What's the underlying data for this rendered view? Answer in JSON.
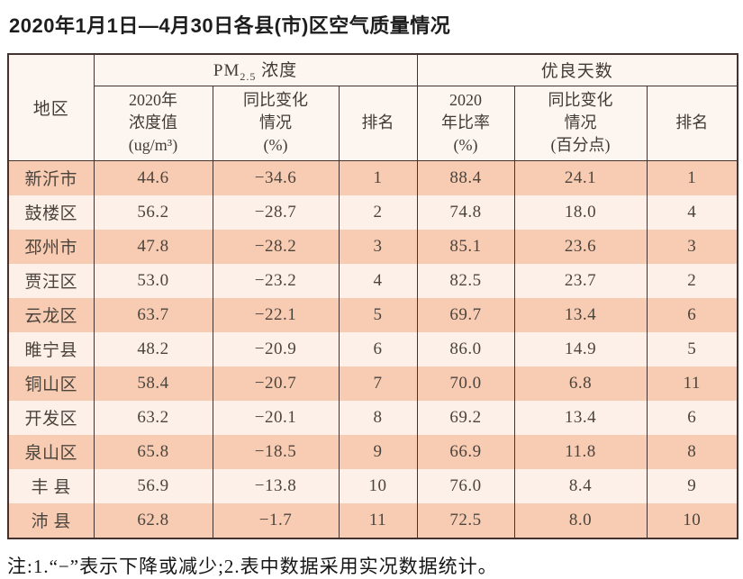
{
  "title": "2020年1月1日—4月30日各县(市)区空气质量情况",
  "colors": {
    "row_shade": "#f8ccb3",
    "row_light": "#fdf0e8",
    "header_bg": "#fdf6f0",
    "border": "#443230"
  },
  "table": {
    "header": {
      "region": "地区",
      "pm25_group": {
        "prefix": "PM",
        "sub": "2.5",
        "suffix": " 浓度"
      },
      "good_days_group": "优良天数",
      "sub_headers": {
        "pm_value": "2020年\n浓度值\n(ug/m³)",
        "pm_change": "同比变化\n情况\n(%)",
        "pm_rank": "排名",
        "days_ratio": "2020\n年比率\n(%)",
        "days_change": "同比变化\n情况\n(百分点)",
        "days_rank": "排名"
      }
    },
    "rows": [
      {
        "region": "新沂市",
        "pm_value": "44.6",
        "pm_change": "−34.6",
        "pm_rank": "1",
        "days_ratio": "88.4",
        "days_change": "24.1",
        "days_rank": "1"
      },
      {
        "region": "鼓楼区",
        "pm_value": "56.2",
        "pm_change": "−28.7",
        "pm_rank": "2",
        "days_ratio": "74.8",
        "days_change": "18.0",
        "days_rank": "4"
      },
      {
        "region": "邳州市",
        "pm_value": "47.8",
        "pm_change": "−28.2",
        "pm_rank": "3",
        "days_ratio": "85.1",
        "days_change": "23.6",
        "days_rank": "3"
      },
      {
        "region": "贾汪区",
        "pm_value": "53.0",
        "pm_change": "−23.2",
        "pm_rank": "4",
        "days_ratio": "82.5",
        "days_change": "23.7",
        "days_rank": "2"
      },
      {
        "region": "云龙区",
        "pm_value": "63.7",
        "pm_change": "−22.1",
        "pm_rank": "5",
        "days_ratio": "69.7",
        "days_change": "13.4",
        "days_rank": "6"
      },
      {
        "region": "睢宁县",
        "pm_value": "48.2",
        "pm_change": "−20.9",
        "pm_rank": "6",
        "days_ratio": "86.0",
        "days_change": "14.9",
        "days_rank": "5"
      },
      {
        "region": "铜山区",
        "pm_value": "58.4",
        "pm_change": "−20.7",
        "pm_rank": "7",
        "days_ratio": "70.0",
        "days_change": "6.8",
        "days_rank": "11"
      },
      {
        "region": "开发区",
        "pm_value": "63.2",
        "pm_change": "−20.1",
        "pm_rank": "8",
        "days_ratio": "69.2",
        "days_change": "13.4",
        "days_rank": "6"
      },
      {
        "region": "泉山区",
        "pm_value": "65.8",
        "pm_change": "−18.5",
        "pm_rank": "9",
        "days_ratio": "66.9",
        "days_change": "11.8",
        "days_rank": "8"
      },
      {
        "region": "丰 县",
        "pm_value": "56.9",
        "pm_change": "−13.8",
        "pm_rank": "10",
        "days_ratio": "76.0",
        "days_change": "8.4",
        "days_rank": "9"
      },
      {
        "region": "沛 县",
        "pm_value": "62.8",
        "pm_change": "−1.7",
        "pm_rank": "11",
        "days_ratio": "72.5",
        "days_change": "8.0",
        "days_rank": "10"
      }
    ]
  },
  "note": "注:1.“−”表示下降或减少;2.表中数据采用实况数据统计。"
}
